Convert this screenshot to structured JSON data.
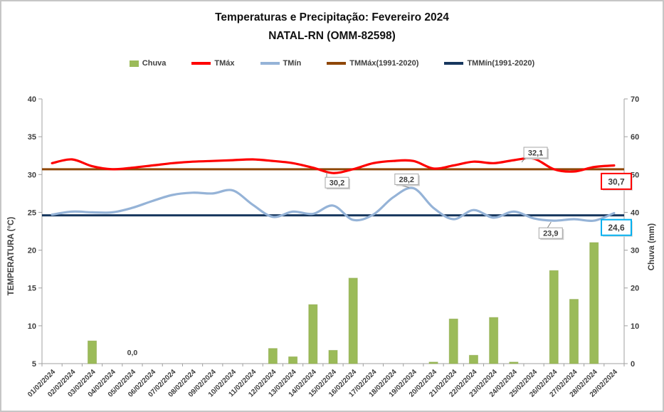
{
  "title": {
    "line1": "Temperaturas e Precipitação: Fevereiro 2024",
    "line2": "NATAL-RN (OMM-82598)"
  },
  "legend": [
    {
      "label": "Chuva",
      "color": "#9BBB59",
      "type": "bar"
    },
    {
      "label": "TMáx",
      "color": "#FF0000",
      "type": "line"
    },
    {
      "label": "TMín",
      "color": "#95B3D7",
      "type": "line"
    },
    {
      "label": "TMMáx(1991-2020)",
      "color": "#8F4708",
      "type": "line"
    },
    {
      "label": "TMMín(1991-2020)",
      "color": "#17375E",
      "type": "line"
    }
  ],
  "axes": {
    "left_title": "TEMPERATURA (°C)",
    "right_title": "Chuva (mm)"
  },
  "chart_data": {
    "type": "combo",
    "categories": [
      "01/02/2024",
      "02/02/2024",
      "03/02/2024",
      "04/02/2024",
      "05/02/2024",
      "06/02/2024",
      "07/02/2024",
      "08/02/2024",
      "09/02/2024",
      "10/02/2024",
      "11/02/2024",
      "12/02/2024",
      "13/02/2024",
      "14/02/2024",
      "15/02/2024",
      "16/02/2024",
      "17/02/2024",
      "18/02/2024",
      "19/02/2024",
      "20/02/2024",
      "21/02/2024",
      "22/02/2024",
      "23/02/2024",
      "24/02/2024",
      "25/02/2024",
      "26/02/2024",
      "27/02/2024",
      "28/02/2024",
      "29/02/2024"
    ],
    "axis_left": {
      "title": "TEMPERATURA (°C)",
      "min": 5,
      "max": 40,
      "ticks": [
        40,
        35,
        30,
        25,
        20,
        15,
        10,
        5
      ]
    },
    "axis_right": {
      "title": "Chuva (mm)",
      "min": 0,
      "max": 70,
      "ticks": [
        0,
        10,
        20,
        30,
        40,
        50,
        60,
        70
      ]
    },
    "grid": false,
    "legend_position": "top",
    "series": [
      {
        "name": "Chuva",
        "type": "bar",
        "axis": "right",
        "color": "#9BBB59",
        "values": [
          0,
          0,
          6.0,
          0,
          0,
          0,
          0,
          0,
          0,
          0,
          0,
          4.0,
          1.8,
          15.6,
          3.5,
          22.6,
          0,
          0,
          0,
          0.4,
          11.8,
          2.2,
          12.2,
          0.4,
          0,
          24.6,
          17.0,
          32.0,
          0
        ]
      },
      {
        "name": "TMáx",
        "type": "line",
        "axis": "left",
        "color": "#FF0000",
        "values": [
          31.5,
          32.0,
          31.1,
          30.7,
          30.9,
          31.2,
          31.5,
          31.7,
          31.8,
          31.9,
          32.0,
          31.8,
          31.5,
          30.9,
          30.2,
          30.7,
          31.5,
          31.8,
          31.8,
          30.8,
          31.2,
          31.7,
          31.5,
          31.9,
          32.1,
          30.7,
          30.4,
          31.0,
          31.2
        ]
      },
      {
        "name": "TMín",
        "type": "line",
        "axis": "left",
        "color": "#95B3D7",
        "values": [
          24.7,
          25.1,
          25.0,
          25.0,
          25.6,
          26.5,
          27.3,
          27.6,
          27.5,
          27.9,
          26.0,
          24.4,
          25.1,
          24.8,
          25.9,
          24.0,
          24.7,
          27.0,
          28.2,
          25.6,
          24.1,
          25.3,
          24.3,
          25.1,
          24.2,
          23.9,
          24.1,
          23.9,
          24.9
        ]
      },
      {
        "name": "TMMáx(1991-2020)",
        "type": "line-flat",
        "axis": "left",
        "color": "#8F4708",
        "value": 30.7
      },
      {
        "name": "TMMín(1991-2020)",
        "type": "line-flat",
        "axis": "left",
        "color": "#17375E",
        "value": 24.6
      }
    ],
    "annotations": {
      "callouts": [
        {
          "label": "30,2",
          "series": "TMáx",
          "day": 15,
          "value": 30.2,
          "placement": "below"
        },
        {
          "label": "32,1",
          "series": "TMáx",
          "day": 25,
          "value": 32.1,
          "placement": "above"
        },
        {
          "label": "28,2",
          "series": "TMín",
          "day": 19,
          "value": 28.2,
          "placement": "above-left"
        },
        {
          "label": "23,9",
          "series": "TMín",
          "day": 26,
          "value": 23.9,
          "placement": "below-right"
        }
      ],
      "zero_label": {
        "label": "0,0",
        "series": "Chuva",
        "day": 5,
        "value": 0.0
      },
      "end_boxes": [
        {
          "label": "30,7",
          "value": 30.7,
          "border_color": "#FF0000"
        },
        {
          "label": "24,6",
          "value": 24.6,
          "border_color": "#00B0F0"
        }
      ]
    }
  }
}
